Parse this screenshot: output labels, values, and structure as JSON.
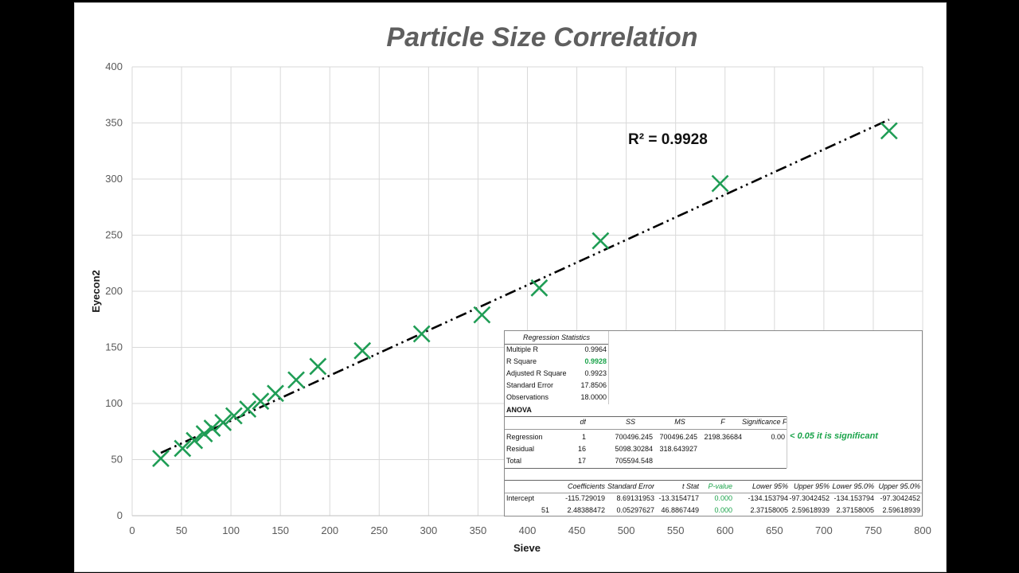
{
  "chart_data": {
    "type": "scatter",
    "title": "Particle Size Correlation",
    "xlabel": "Sieve",
    "ylabel": "Eyecon2",
    "xlim": [
      0,
      800
    ],
    "ylim": [
      0,
      400
    ],
    "xticks": [
      "0",
      "50",
      "100",
      "150",
      "200",
      "250",
      "300",
      "350",
      "400",
      "450",
      "500",
      "550",
      "600",
      "650",
      "700",
      "750",
      "800"
    ],
    "yticks": [
      "0",
      "50",
      "100",
      "150",
      "200",
      "250",
      "300",
      "350",
      "400"
    ],
    "grid": true,
    "marker": "x",
    "marker_color": "#1f9d55",
    "points": [
      {
        "x": 29,
        "y": 51
      },
      {
        "x": 51,
        "y": 60
      },
      {
        "x": 63,
        "y": 67
      },
      {
        "x": 73,
        "y": 73
      },
      {
        "x": 81,
        "y": 78
      },
      {
        "x": 92,
        "y": 83
      },
      {
        "x": 103,
        "y": 89
      },
      {
        "x": 117,
        "y": 95
      },
      {
        "x": 130,
        "y": 102
      },
      {
        "x": 145,
        "y": 109
      },
      {
        "x": 166,
        "y": 121
      },
      {
        "x": 188,
        "y": 133
      },
      {
        "x": 233,
        "y": 147
      },
      {
        "x": 293,
        "y": 162
      },
      {
        "x": 354,
        "y": 179
      },
      {
        "x": 412,
        "y": 203
      },
      {
        "x": 474,
        "y": 245
      },
      {
        "x": 595,
        "y": 296
      },
      {
        "x": 766,
        "y": 343
      }
    ],
    "trendline": {
      "x0": 29,
      "y0": 56,
      "x1": 766,
      "y1": 353,
      "style": "dash-dot-dot",
      "color": "#000000"
    },
    "annotation": "R² = 0.9928"
  },
  "stats": {
    "reg_header": "Regression Statistics",
    "reg_rows": [
      {
        "label": "Multiple R",
        "value": "0.9964",
        "hi": false
      },
      {
        "label": "R Square",
        "value": "0.9928",
        "hi": true
      },
      {
        "label": "Adjusted R Square",
        "value": "0.9923",
        "hi": false
      },
      {
        "label": "Standard Error",
        "value": "17.8506",
        "hi": false
      },
      {
        "label": "Observations",
        "value": "18.0000",
        "hi": false
      }
    ],
    "anova_label": "ANOVA",
    "anova_headers": [
      "df",
      "SS",
      "MS",
      "F",
      "Significance F"
    ],
    "anova_rows": [
      {
        "label": "Regression",
        "cells": [
          "1",
          "700496.245",
          "700496.245",
          "2198.36684",
          "0.00"
        ]
      },
      {
        "label": "Residual",
        "cells": [
          "16",
          "5098.30284",
          "318.643927",
          "",
          ""
        ]
      },
      {
        "label": "Total",
        "cells": [
          "17",
          "705594.548",
          "",
          "",
          ""
        ]
      }
    ],
    "significance_note": "< 0.05 it is significant",
    "coef_headers": [
      "Coefficients",
      "Standard Error",
      "t Stat",
      "P-value",
      "Lower 95%",
      "Upper 95%",
      "Lower 95.0%",
      "Upper 95.0%"
    ],
    "coef_rows": [
      {
        "label": "Intercept",
        "cells": [
          "-115.729019",
          "8.69131953",
          "-13.3154717",
          "0.000",
          "-134.153794",
          "-97.3042452",
          "-134.153794",
          "-97.3042452"
        ]
      },
      {
        "label": "51",
        "cells": [
          "2.48388472",
          "0.05297627",
          "46.8867449",
          "0.000",
          "2.37158005",
          "2.59618939",
          "2.37158005",
          "2.59618939"
        ]
      }
    ]
  }
}
